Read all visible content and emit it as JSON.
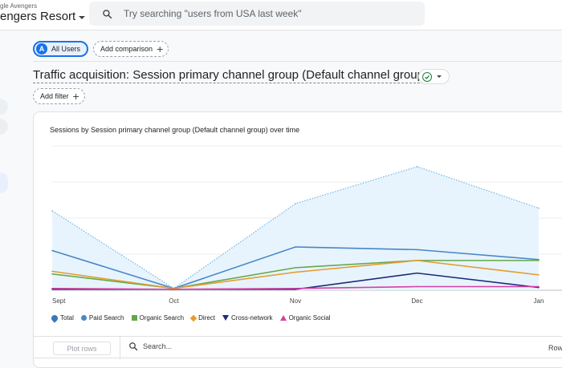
{
  "header": {
    "property_subtitle": "gle Avengers",
    "property_name": "engers Resort",
    "search_placeholder": "Try searching \"users from USA last week\""
  },
  "comparison": {
    "all_users_label": "All Users",
    "avatar_letter": "A",
    "add_comparison_label": "Add comparison"
  },
  "report": {
    "title": "Traffic acquisition: Session primary channel group (Default channel group)",
    "add_filter_label": "Add filter"
  },
  "chart_data": {
    "type": "area",
    "title": "Sessions by Session primary channel group (Default channel group) over time",
    "categories": [
      "Sept",
      "Oct",
      "Nov",
      "Dec",
      "Jan"
    ],
    "x_ticks": [
      "Sept",
      "Oct",
      "Nov",
      "Dec",
      "Jan"
    ],
    "grid": true,
    "legend_position": "bottom-left",
    "series": [
      {
        "name": "Total",
        "values": [
          88,
          2,
          96,
          137,
          91
        ],
        "color": "#6fb6e6",
        "style": "dotted-area"
      },
      {
        "name": "Paid Search",
        "values": [
          44,
          2,
          48,
          45,
          34
        ],
        "color": "#4a86c8",
        "style": "line"
      },
      {
        "name": "Organic Search",
        "values": [
          18,
          2,
          25,
          33,
          33
        ],
        "color": "#63a84a",
        "style": "line"
      },
      {
        "name": "Direct",
        "values": [
          21,
          2,
          20,
          33,
          17
        ],
        "color": "#e59b2e",
        "style": "line"
      },
      {
        "name": "Cross-network",
        "values": [
          1,
          1,
          1,
          19,
          3
        ],
        "color": "#22297a",
        "style": "line"
      },
      {
        "name": "Organic Social",
        "values": [
          2,
          1,
          2,
          4,
          4
        ],
        "color": "#d53fa5",
        "style": "line"
      }
    ],
    "ylim": [
      0,
      160
    ]
  },
  "table": {
    "plot_rows_label": "Plot rows",
    "search_placeholder": "Search...",
    "rows_label": "Row"
  }
}
